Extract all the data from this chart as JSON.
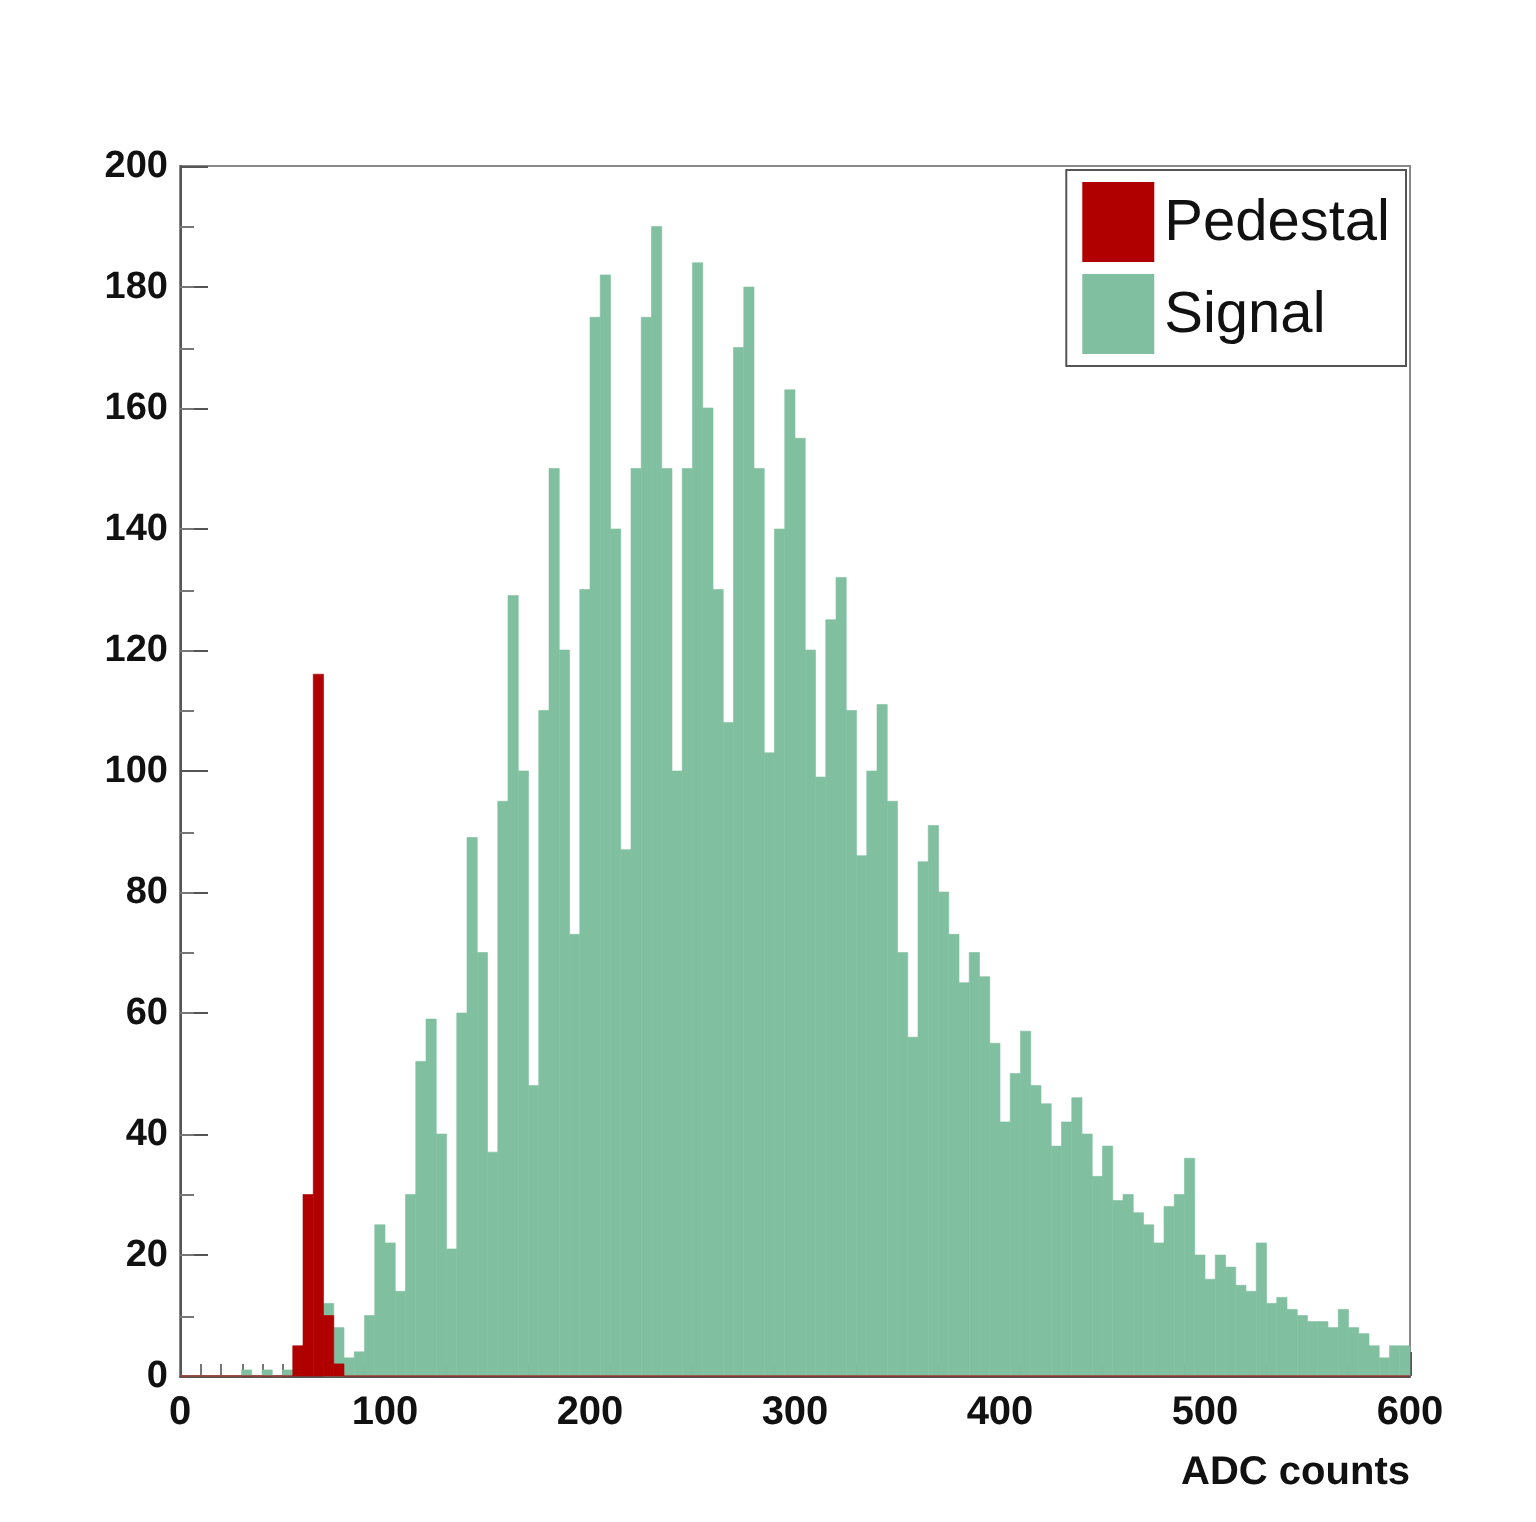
{
  "chart_data": {
    "type": "histogram",
    "xlabel": "ADC counts",
    "bins": [
      0,
      5,
      10,
      15,
      20,
      25,
      30,
      35,
      40,
      45,
      50,
      55,
      60,
      65,
      70,
      75,
      80,
      85,
      90,
      95,
      100,
      105,
      110,
      115,
      120,
      125,
      130,
      135,
      140,
      145,
      150,
      155,
      160,
      165,
      170,
      175,
      180,
      185,
      190,
      195,
      200,
      205,
      210,
      215,
      220,
      225,
      230,
      235,
      240,
      245,
      250,
      255,
      260,
      265,
      270,
      275,
      280,
      285,
      290,
      295,
      300,
      305,
      310,
      315,
      320,
      325,
      330,
      335,
      340,
      345,
      350,
      355,
      360,
      365,
      370,
      375,
      380,
      385,
      390,
      395,
      400,
      405,
      410,
      415,
      420,
      425,
      430,
      435,
      440,
      445,
      450,
      455,
      460,
      465,
      470,
      475,
      480,
      485,
      490,
      495,
      500,
      505,
      510,
      515,
      520,
      525,
      530,
      535,
      540,
      545,
      550,
      555,
      560,
      565,
      570,
      575,
      580,
      585,
      590,
      595,
      600
    ],
    "series": [
      {
        "name": "Signal",
        "color": "#80c0a0",
        "values": [
          0,
          0,
          0,
          0,
          0,
          0,
          1,
          0,
          1,
          0,
          1,
          null,
          null,
          null,
          12,
          8,
          3,
          4,
          10,
          25,
          22,
          14,
          30,
          52,
          59,
          40,
          21,
          60,
          89,
          70,
          37,
          95,
          129,
          100,
          48,
          110,
          150,
          120,
          73,
          130,
          175,
          182,
          140,
          87,
          150,
          175,
          190,
          150,
          100,
          150,
          184,
          160,
          130,
          108,
          170,
          180,
          150,
          103,
          140,
          163,
          155,
          120,
          99,
          125,
          132,
          110,
          86,
          100,
          111,
          95,
          70,
          56,
          85,
          91,
          80,
          73,
          65,
          70,
          66,
          55,
          42,
          50,
          57,
          48,
          45,
          38,
          42,
          46,
          40,
          33,
          38,
          29,
          30,
          27,
          25,
          22,
          28,
          30,
          36,
          20,
          16,
          20,
          18,
          15,
          14,
          22,
          12,
          13,
          11,
          10,
          9,
          9,
          8,
          11,
          8,
          7,
          5,
          3,
          5,
          5
        ]
      },
      {
        "name": "Pedestal",
        "color": "#b00000",
        "values": [
          0,
          0,
          0,
          0,
          0,
          0,
          0,
          0,
          0,
          0,
          0,
          5,
          30,
          116,
          10,
          2,
          0,
          0,
          0,
          0,
          0,
          0,
          0,
          0,
          0,
          0,
          0,
          0,
          0,
          0,
          0,
          0,
          0,
          0,
          0,
          0,
          0,
          0,
          0,
          0,
          0,
          0,
          0,
          0,
          0,
          0,
          0,
          0,
          0,
          0,
          0,
          0,
          0,
          0,
          0,
          0,
          0,
          0,
          0,
          0,
          0,
          0,
          0,
          0,
          0,
          0,
          0,
          0,
          0,
          0,
          0,
          0,
          0,
          0,
          0,
          0,
          0,
          0,
          0,
          0,
          0,
          0,
          0,
          0,
          0,
          0,
          0,
          0,
          0,
          0,
          0,
          0,
          0,
          0,
          0,
          0,
          0,
          0,
          0,
          0,
          0,
          0,
          0,
          0,
          0,
          0,
          0,
          0,
          0,
          0,
          0,
          0,
          0,
          0,
          0,
          0,
          0,
          0,
          0,
          0
        ]
      }
    ],
    "xlim": [
      0,
      600
    ],
    "xticks": [
      0,
      100,
      200,
      300,
      400,
      500,
      600
    ],
    "ylim": [
      0,
      200
    ],
    "yticks": [
      0,
      20,
      40,
      60,
      80,
      100,
      120,
      140,
      160,
      180,
      200
    ],
    "legend": "top right",
    "grid": false
  }
}
